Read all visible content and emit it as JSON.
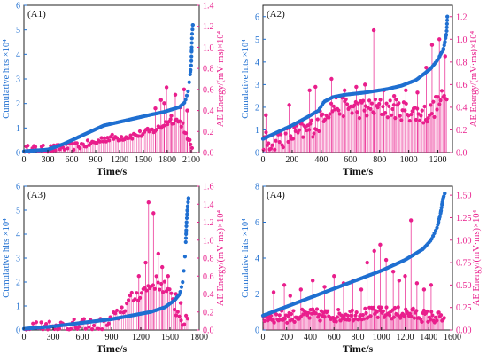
{
  "colors": {
    "cumulative": "#1f6fd1",
    "energy": "#e91e8c",
    "axis": "#222222"
  },
  "chart_data": [
    {
      "id": "A1",
      "type": "scatter",
      "label": "(A1)",
      "xlabel": "Time/s",
      "ylabel_left": "Cumulative hits ×10⁴",
      "ylabel_right": "AE Energy/(mV·ms)×10⁴",
      "xlim": [
        0,
        2200
      ],
      "xticks": [
        0,
        300,
        600,
        900,
        1200,
        1500,
        1800,
        2100
      ],
      "ylim_left": [
        0,
        6
      ],
      "yticks_left": [
        0,
        1,
        2,
        3,
        4,
        5,
        6
      ],
      "ylim_right": [
        0,
        1.4
      ],
      "yticks_right": [
        "0.0",
        "0.2",
        "0.4",
        "0.6",
        "0.8",
        "1.0",
        "1.2",
        "1.4"
      ],
      "hits_curve": [
        [
          0,
          0.05
        ],
        [
          300,
          0.12
        ],
        [
          500,
          0.35
        ],
        [
          700,
          0.65
        ],
        [
          900,
          0.95
        ],
        [
          1000,
          1.1
        ],
        [
          1200,
          1.25
        ],
        [
          1400,
          1.4
        ],
        [
          1600,
          1.55
        ],
        [
          1750,
          1.65
        ],
        [
          1850,
          1.75
        ],
        [
          1950,
          1.85
        ],
        [
          2020,
          2.05
        ],
        [
          2060,
          2.5
        ],
        [
          2080,
          3.0
        ],
        [
          2100,
          3.6
        ],
        [
          2110,
          4.8
        ],
        [
          2120,
          5.2
        ]
      ],
      "energy_base": [
        [
          0,
          0.02
        ],
        [
          300,
          0.02
        ],
        [
          600,
          0.04
        ],
        [
          900,
          0.08
        ],
        [
          1000,
          0.12
        ],
        [
          1200,
          0.13
        ],
        [
          1400,
          0.15
        ],
        [
          1600,
          0.19
        ],
        [
          1700,
          0.22
        ],
        [
          1800,
          0.28
        ],
        [
          1900,
          0.3
        ],
        [
          2000,
          0.25
        ],
        [
          2050,
          0.1
        ],
        [
          2100,
          0.04
        ]
      ],
      "energy_spikes": [
        [
          1650,
          0.42
        ],
        [
          1720,
          0.5
        ],
        [
          1760,
          0.47
        ],
        [
          1790,
          0.62
        ],
        [
          1850,
          0.35
        ],
        [
          1900,
          0.55
        ],
        [
          1960,
          0.43
        ],
        [
          2010,
          0.6
        ],
        [
          2050,
          0.4
        ],
        [
          2080,
          0.12
        ]
      ],
      "n_points": 110,
      "energy_noise": 0.035
    },
    {
      "id": "A2",
      "type": "scatter",
      "label": "(A2)",
      "xlabel": "Time/s",
      "ylabel_left": "Cumulative hits ×10⁴",
      "ylabel_right": "AE Energy/(mV·ms)×10⁴",
      "xlim": [
        0,
        1300
      ],
      "xticks": [
        0,
        200,
        400,
        600,
        800,
        1000,
        1200
      ],
      "ylim_left": [
        0,
        6.5
      ],
      "yticks_left": [
        0,
        1,
        2,
        3,
        4,
        5,
        6
      ],
      "ylim_right": [
        0,
        1.3
      ],
      "yticks_right": [
        "0.0",
        "0.2",
        "0.4",
        "0.6",
        "0.8",
        "1.0",
        "1.2"
      ],
      "hits_curve": [
        [
          0,
          0.6
        ],
        [
          100,
          0.9
        ],
        [
          200,
          1.2
        ],
        [
          300,
          1.55
        ],
        [
          380,
          1.85
        ],
        [
          420,
          2.25
        ],
        [
          480,
          2.45
        ],
        [
          560,
          2.55
        ],
        [
          700,
          2.65
        ],
        [
          850,
          2.8
        ],
        [
          950,
          2.95
        ],
        [
          1050,
          3.2
        ],
        [
          1150,
          3.7
        ],
        [
          1200,
          4.1
        ],
        [
          1240,
          4.6
        ],
        [
          1260,
          5.3
        ],
        [
          1265,
          6.0
        ]
      ],
      "energy_base": [
        [
          0,
          0.05
        ],
        [
          100,
          0.08
        ],
        [
          200,
          0.12
        ],
        [
          300,
          0.16
        ],
        [
          380,
          0.22
        ],
        [
          420,
          0.32
        ],
        [
          500,
          0.38
        ],
        [
          600,
          0.36
        ],
        [
          700,
          0.35
        ],
        [
          800,
          0.36
        ],
        [
          900,
          0.35
        ],
        [
          1000,
          0.33
        ],
        [
          1100,
          0.3
        ],
        [
          1150,
          0.32
        ],
        [
          1200,
          0.4
        ],
        [
          1250,
          0.45
        ],
        [
          1265,
          0.5
        ]
      ],
      "energy_spikes": [
        [
          20,
          0.33
        ],
        [
          180,
          0.42
        ],
        [
          320,
          0.55
        ],
        [
          360,
          0.58
        ],
        [
          470,
          0.65
        ],
        [
          560,
          0.55
        ],
        [
          640,
          0.58
        ],
        [
          700,
          0.6
        ],
        [
          760,
          1.08
        ],
        [
          830,
          0.55
        ],
        [
          900,
          0.5
        ],
        [
          980,
          0.55
        ],
        [
          1060,
          0.53
        ],
        [
          1120,
          0.75
        ],
        [
          1160,
          0.95
        ],
        [
          1210,
          1.0
        ],
        [
          1250,
          0.85
        ]
      ],
      "n_points": 150,
      "energy_noise": 0.09
    },
    {
      "id": "A3",
      "type": "scatter",
      "label": "(A3)",
      "xlabel": "Time/s",
      "ylabel_left": "Cumulative hits ×10⁴",
      "ylabel_right": "AE Energy/(mV·ms)×10⁴",
      "xlim": [
        0,
        1800
      ],
      "xticks": [
        0,
        300,
        600,
        900,
        1200,
        1500,
        1800
      ],
      "ylim_left": [
        0,
        6
      ],
      "yticks_left": [
        0,
        1,
        2,
        3,
        4,
        5,
        6
      ],
      "ylim_right": [
        0,
        1.6
      ],
      "yticks_right": [
        "0.0",
        "0.2",
        "0.4",
        "0.6",
        "0.8",
        "1.0",
        "1.2",
        "1.4",
        "1.6"
      ],
      "hits_curve": [
        [
          0,
          0.05
        ],
        [
          300,
          0.15
        ],
        [
          600,
          0.3
        ],
        [
          900,
          0.45
        ],
        [
          1100,
          0.6
        ],
        [
          1300,
          0.75
        ],
        [
          1450,
          0.95
        ],
        [
          1550,
          1.25
        ],
        [
          1600,
          1.5
        ],
        [
          1630,
          2.0
        ],
        [
          1650,
          2.8
        ],
        [
          1660,
          3.5
        ],
        [
          1670,
          4.5
        ],
        [
          1680,
          5.1
        ],
        [
          1690,
          5.5
        ]
      ],
      "energy_base": [
        [
          0,
          0.0
        ],
        [
          600,
          0.01
        ],
        [
          850,
          0.03
        ],
        [
          950,
          0.12
        ],
        [
          1050,
          0.25
        ],
        [
          1150,
          0.35
        ],
        [
          1250,
          0.42
        ],
        [
          1350,
          0.5
        ],
        [
          1450,
          0.45
        ],
        [
          1520,
          0.3
        ],
        [
          1580,
          0.15
        ],
        [
          1650,
          0.06
        ],
        [
          1690,
          0.03
        ]
      ],
      "energy_spikes": [
        [
          1180,
          0.6
        ],
        [
          1250,
          0.75
        ],
        [
          1280,
          1.42
        ],
        [
          1330,
          1.3
        ],
        [
          1380,
          0.85
        ],
        [
          1420,
          0.7
        ],
        [
          1480,
          0.6
        ],
        [
          1560,
          0.4
        ],
        [
          1610,
          0.3
        ]
      ],
      "n_points": 100,
      "energy_noise": 0.08
    },
    {
      "id": "A4",
      "type": "scatter",
      "label": "(A4)",
      "xlabel": "Time/s",
      "ylabel_left": "Cumulative hits ×10⁴",
      "ylabel_right": "AE Energy/(mV·ms)×10⁴",
      "xlim": [
        0,
        1600
      ],
      "xticks": [
        0,
        200,
        400,
        600,
        800,
        1000,
        1200,
        1400,
        1600
      ],
      "ylim_left": [
        0,
        8
      ],
      "yticks_left": [
        0,
        2,
        4,
        6,
        8
      ],
      "ylim_right": [
        0,
        1.6
      ],
      "yticks_right": [
        "0.00",
        "0.25",
        "0.50",
        "0.75",
        "1.00",
        "1.25",
        "1.50"
      ],
      "hits_curve": [
        [
          0,
          0.8
        ],
        [
          200,
          1.3
        ],
        [
          400,
          1.8
        ],
        [
          600,
          2.3
        ],
        [
          800,
          2.8
        ],
        [
          1000,
          3.3
        ],
        [
          1200,
          3.9
        ],
        [
          1350,
          4.5
        ],
        [
          1420,
          5.0
        ],
        [
          1470,
          5.7
        ],
        [
          1500,
          6.5
        ],
        [
          1520,
          7.3
        ],
        [
          1535,
          7.6
        ]
      ],
      "energy_base": [
        [
          0,
          0.12
        ],
        [
          200,
          0.12
        ],
        [
          400,
          0.14
        ],
        [
          600,
          0.13
        ],
        [
          800,
          0.15
        ],
        [
          1000,
          0.16
        ],
        [
          1200,
          0.16
        ],
        [
          1400,
          0.12
        ],
        [
          1535,
          0.1
        ]
      ],
      "energy_spikes": [
        [
          90,
          0.42
        ],
        [
          180,
          0.5
        ],
        [
          230,
          0.38
        ],
        [
          320,
          0.45
        ],
        [
          420,
          0.55
        ],
        [
          520,
          0.48
        ],
        [
          600,
          0.6
        ],
        [
          680,
          0.52
        ],
        [
          760,
          0.55
        ],
        [
          830,
          0.45
        ],
        [
          880,
          0.75
        ],
        [
          940,
          0.88
        ],
        [
          990,
          0.95
        ],
        [
          1040,
          0.78
        ],
        [
          1100,
          0.65
        ],
        [
          1150,
          0.55
        ],
        [
          1200,
          0.6
        ],
        [
          1250,
          1.22
        ],
        [
          1300,
          0.52
        ],
        [
          1360,
          0.45
        ],
        [
          1420,
          0.5
        ]
      ],
      "n_points": 170,
      "energy_noise": 0.07
    }
  ]
}
